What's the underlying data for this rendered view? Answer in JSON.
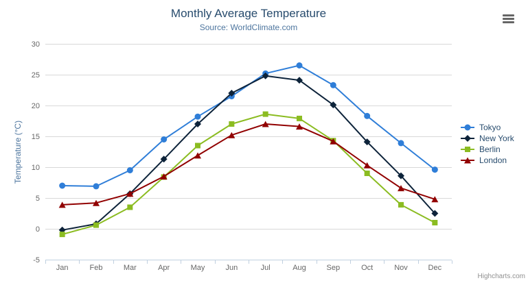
{
  "chart_data": {
    "type": "line",
    "title": "Monthly Average Temperature",
    "subtitle": "Source: WorldClimate.com",
    "categories": [
      "Jan",
      "Feb",
      "Mar",
      "Apr",
      "May",
      "Jun",
      "Jul",
      "Aug",
      "Sep",
      "Oct",
      "Nov",
      "Dec"
    ],
    "xlabel": "",
    "ylabel": "Temperature (°C)",
    "yaxis": {
      "title": "Temperature (°C)",
      "min": -5,
      "max": 30,
      "tick_interval": 5
    },
    "grid": true,
    "legend_position": "right",
    "series": [
      {
        "name": "Tokyo",
        "color": "#2f7ed8",
        "marker": "circle",
        "values": [
          7.0,
          6.9,
          9.5,
          14.5,
          18.2,
          21.5,
          25.2,
          26.5,
          23.3,
          18.3,
          13.9,
          9.6
        ]
      },
      {
        "name": "New York",
        "color": "#0d233a",
        "marker": "diamond",
        "values": [
          -0.2,
          0.8,
          5.7,
          11.3,
          17.0,
          22.0,
          24.8,
          24.1,
          20.1,
          14.1,
          8.6,
          2.5
        ]
      },
      {
        "name": "Berlin",
        "color": "#8bbc21",
        "marker": "square",
        "values": [
          -0.9,
          0.6,
          3.5,
          8.4,
          13.5,
          17.0,
          18.6,
          17.9,
          14.3,
          9.0,
          3.9,
          1.0
        ]
      },
      {
        "name": "London",
        "color": "#910000",
        "marker": "triangle",
        "values": [
          3.9,
          4.2,
          5.7,
          8.5,
          11.9,
          15.2,
          17.0,
          16.6,
          14.2,
          10.3,
          6.6,
          4.8
        ]
      }
    ]
  },
  "credit": {
    "label": "Highcharts.com"
  },
  "colors": {
    "title": "#274b6d",
    "subtitle": "#4d759e",
    "axis_title": "#4d759e",
    "axis_labels": "#666666",
    "grid": "#d8d8d8",
    "axis_line": "#c0d0e0",
    "legend_text": "#274b6d",
    "credit": "#909090",
    "menu_icon": "#666666"
  }
}
